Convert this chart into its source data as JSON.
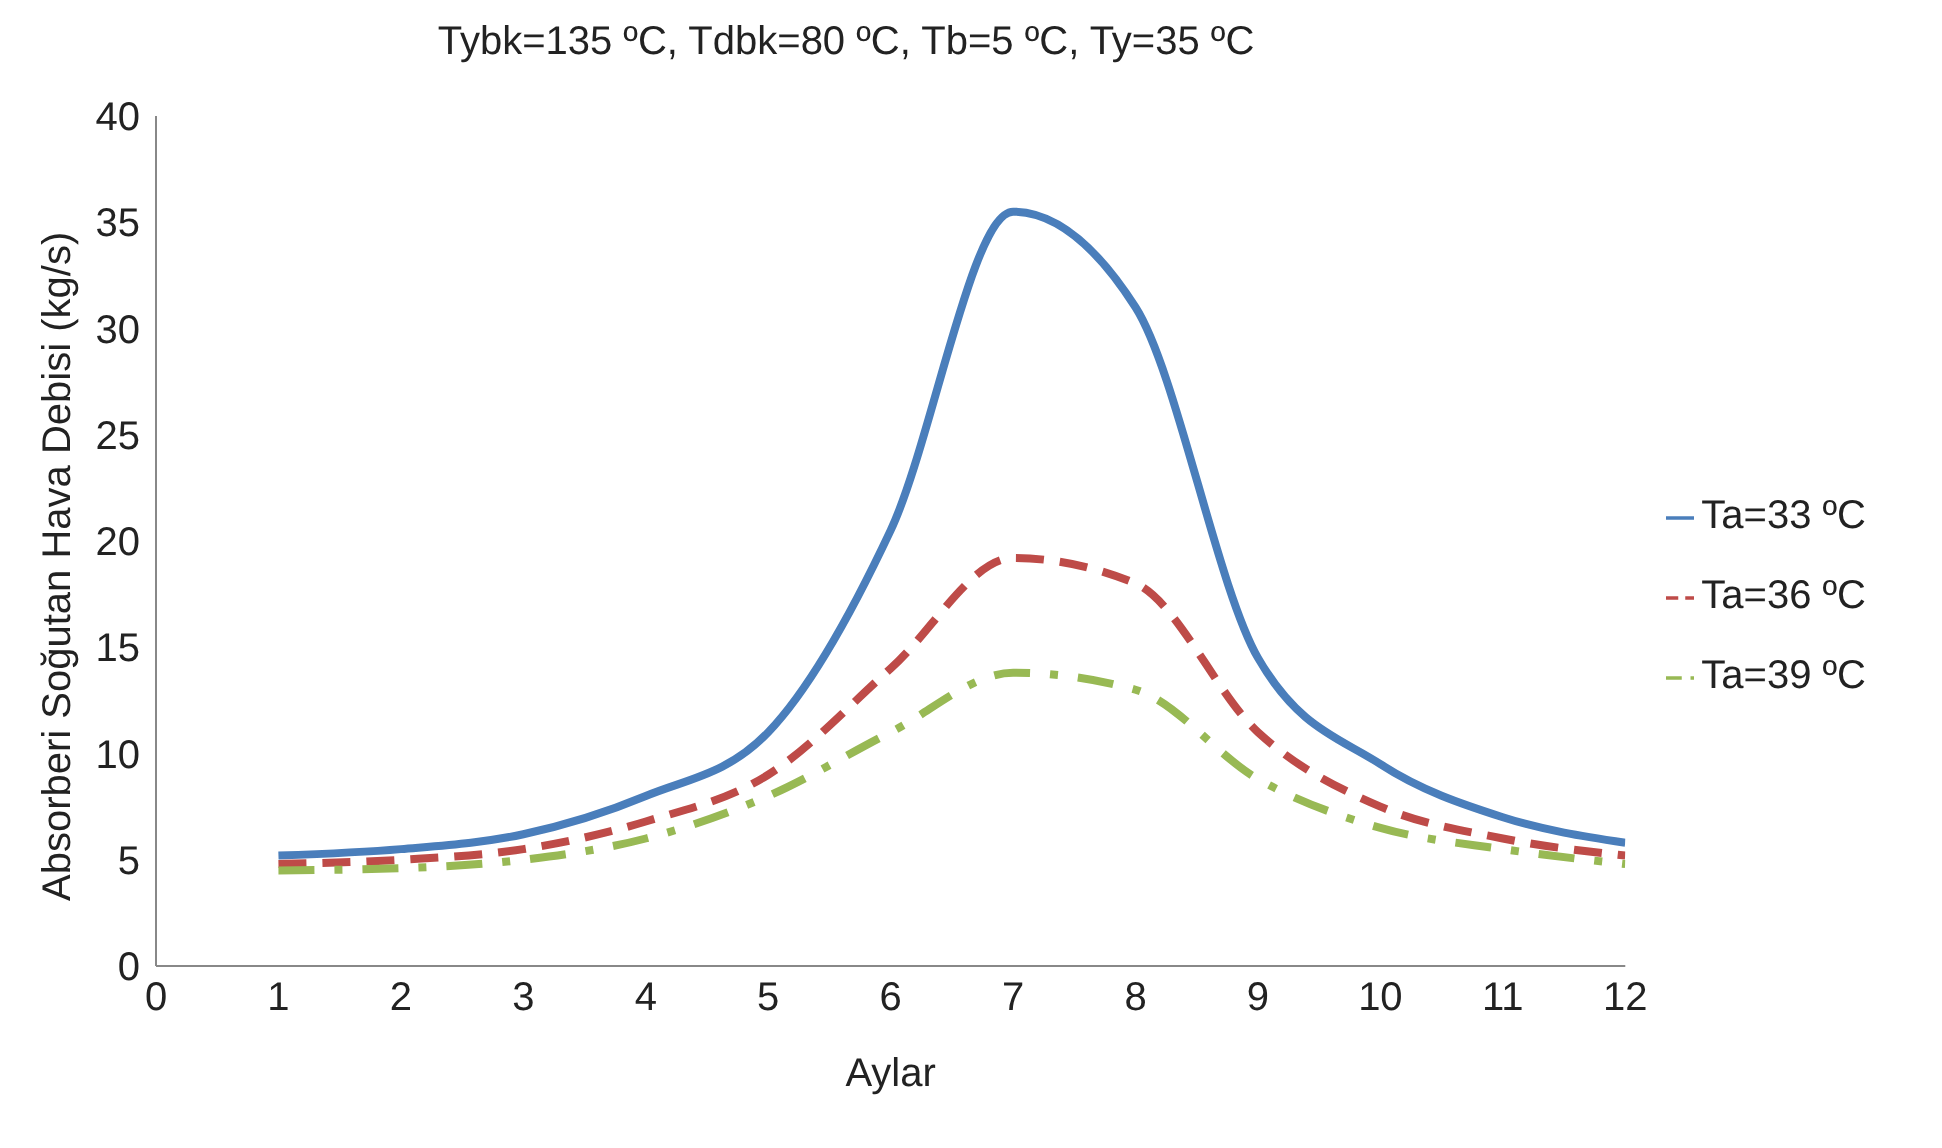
{
  "chart_data": {
    "type": "line",
    "title": "Tybk=135 ºC, Tdbk=80 ºC, Tb=5 ºC, Ty=35 ºC",
    "xlabel": "Aylar",
    "ylabel": "Absorberi Soğutan Hava Debisi (kg/s)",
    "x": [
      1,
      2,
      3,
      4,
      5,
      6,
      7,
      8,
      9,
      10,
      11,
      12
    ],
    "series": [
      {
        "name": "Ta=33 ºC",
        "color": "#4a7ebb",
        "line_style": "solid",
        "values": [
          5.2,
          5.5,
          6.2,
          8.0,
          11,
          20.5,
          35.5,
          31,
          14.5,
          9.5,
          7,
          5.8
        ]
      },
      {
        "name": "Ta=36 ºC",
        "color": "#be4b48",
        "line_style": "dashed",
        "values": [
          4.8,
          5.0,
          5.5,
          6.8,
          9.0,
          14,
          19.2,
          18,
          11,
          7.5,
          6,
          5.2
        ]
      },
      {
        "name": "Ta=39 ºC",
        "color": "#98b954",
        "line_style": "dashdot",
        "values": [
          4.5,
          4.6,
          5.0,
          6.0,
          8.0,
          11,
          13.8,
          13,
          8.8,
          6.5,
          5.5,
          4.8
        ]
      }
    ],
    "xlim": [
      0,
      12
    ],
    "xticks": [
      0,
      1,
      2,
      3,
      4,
      5,
      6,
      7,
      8,
      9,
      10,
      11,
      12
    ],
    "ylim": [
      0,
      40
    ],
    "yticks": [
      0,
      5,
      10,
      15,
      20,
      25,
      30,
      35,
      40
    ],
    "grid": false,
    "legend": "right",
    "marker": "none"
  }
}
